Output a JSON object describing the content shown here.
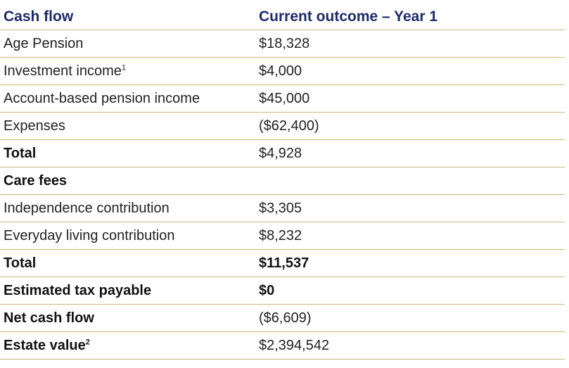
{
  "table": {
    "headers": {
      "col1": "Cash flow",
      "col2": "Current outcome – Year 1"
    },
    "rows": [
      {
        "label": "Age Pension",
        "sup": "",
        "value": "$18,328",
        "label_bold": false,
        "value_bold": false
      },
      {
        "label": "Investment income",
        "sup": "1",
        "value": "$4,000",
        "label_bold": false,
        "value_bold": false
      },
      {
        "label": "Account-based pension income",
        "sup": "",
        "value": "$45,000",
        "label_bold": false,
        "value_bold": false
      },
      {
        "label": "Expenses",
        "sup": "",
        "value": "($62,400)",
        "label_bold": false,
        "value_bold": false
      },
      {
        "label": "Total",
        "sup": "",
        "value": "$4,928",
        "label_bold": true,
        "value_bold": false
      },
      {
        "label": "Care fees",
        "sup": "",
        "value": "",
        "label_bold": true,
        "value_bold": false
      },
      {
        "label": "Independence contribution",
        "sup": "",
        "value": "$3,305",
        "label_bold": false,
        "value_bold": false
      },
      {
        "label": "Everyday living contribution",
        "sup": "",
        "value": "$8,232",
        "label_bold": false,
        "value_bold": false
      },
      {
        "label": "Total",
        "sup": "",
        "value": "$11,537",
        "label_bold": true,
        "value_bold": true
      },
      {
        "label": "Estimated tax payable",
        "sup": "",
        "value": "$0",
        "label_bold": true,
        "value_bold": true
      },
      {
        "label": "Net cash flow",
        "sup": "",
        "value": "($6,609)",
        "label_bold": true,
        "value_bold": false
      },
      {
        "label": "Estate value",
        "sup": "2",
        "value": "$2,394,542",
        "label_bold": true,
        "value_bold": false
      }
    ]
  },
  "colors": {
    "header_text": "#1c2a6b",
    "rule": "#c8b97a",
    "body_text": "#222222"
  }
}
